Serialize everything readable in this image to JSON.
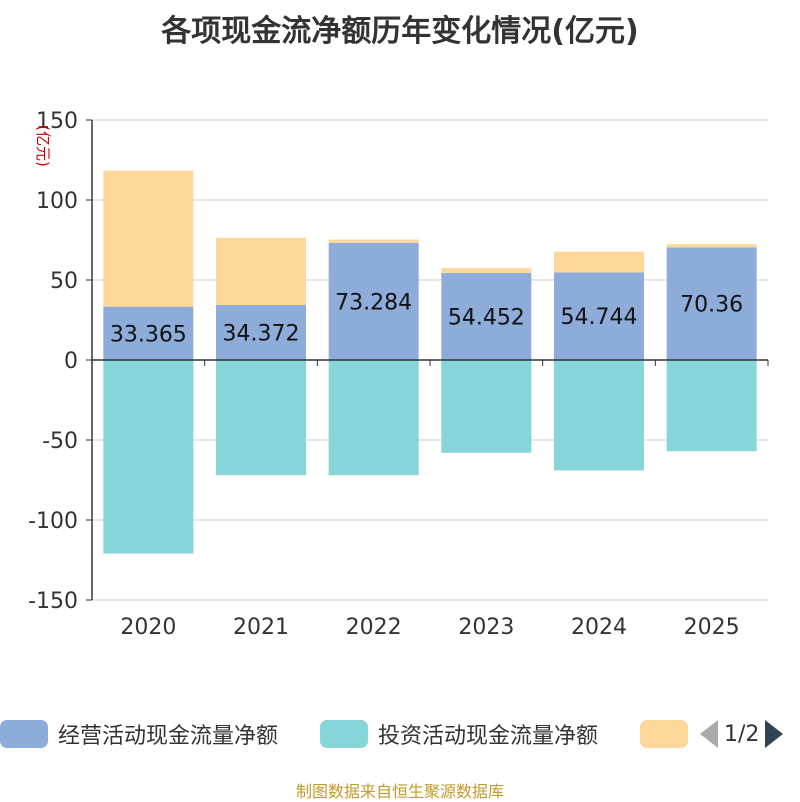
{
  "chart_data": {
    "type": "bar",
    "stacked": true,
    "title": "各项现金流净额历年变化情况(亿元)",
    "ylabel": "(亿元)",
    "xlabel": "",
    "categories": [
      "2020",
      "2021",
      "2022",
      "2023",
      "2024",
      "2025"
    ],
    "ylim": [
      -150,
      150
    ],
    "yticks": [
      150,
      100,
      50,
      0,
      -50,
      -100,
      -150
    ],
    "series": [
      {
        "name": "经营活动现金流量净额",
        "color": "#8eacd9",
        "values": [
          33.365,
          34.372,
          73.284,
          54.452,
          54.744,
          70.36
        ],
        "labels": [
          "33.365",
          "34.372",
          "73.284",
          "54.452",
          "54.744",
          "70.36"
        ]
      },
      {
        "name": "投资活动现金流量净额",
        "color": "#86d5d8",
        "values": [
          -121,
          -72,
          -72,
          -58,
          -69,
          -57
        ]
      },
      {
        "name": "",
        "color": "#fdd89a",
        "values": [
          85,
          42,
          2,
          3,
          13,
          2
        ]
      }
    ],
    "legend_position": "bottom"
  },
  "legend": {
    "items": [
      {
        "label": "经营活动现金流量净额",
        "color": "#8eacd9"
      },
      {
        "label": "投资活动现金流量净额",
        "color": "#86d5d8"
      },
      {
        "label": "",
        "color": "#fdd89a"
      }
    ],
    "page": "1/2"
  },
  "source": "制图数据来自恒生聚源数据库"
}
